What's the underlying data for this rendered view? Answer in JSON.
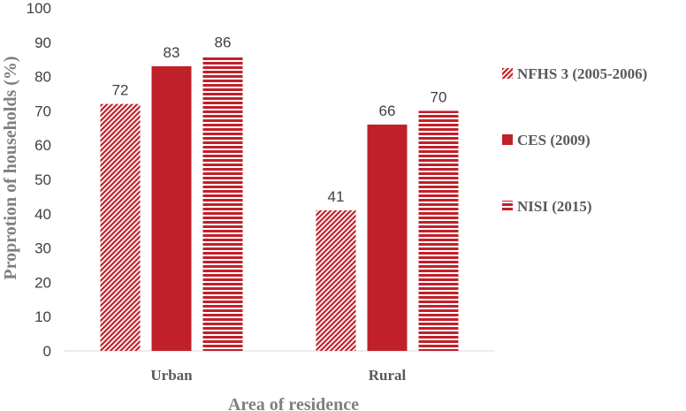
{
  "chart_data": {
    "type": "bar",
    "xlabel": "Area of residence",
    "ylabel": "Proprotion of households (%)",
    "ylim": [
      0,
      100
    ],
    "yticks": [
      0,
      10,
      20,
      30,
      40,
      50,
      60,
      70,
      80,
      90,
      100
    ],
    "categories": [
      "Urban",
      "Rural"
    ],
    "series": [
      {
        "name": "NFHS 3 (2005-2006)",
        "values": [
          72,
          41
        ],
        "pattern": "diagonal-hatch",
        "color": "#c0202a"
      },
      {
        "name": "CES (2009)",
        "values": [
          83,
          66
        ],
        "pattern": "solid",
        "color": "#c0202a"
      },
      {
        "name": "NISI (2015)",
        "values": [
          86,
          70
        ],
        "pattern": "horizontal-stripes",
        "color": "#c0202a"
      }
    ],
    "data_labels": true,
    "grid": false,
    "legend": "right"
  }
}
